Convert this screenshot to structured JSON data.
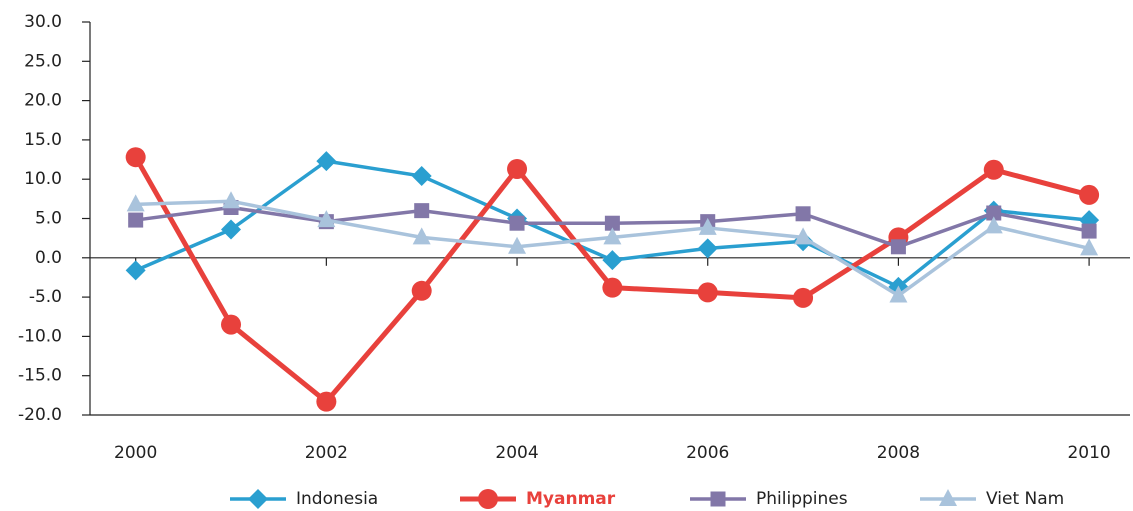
{
  "chart_data": {
    "type": "line",
    "x": [
      2000,
      2001,
      2002,
      2003,
      2004,
      2005,
      2006,
      2007,
      2008,
      2009,
      2010
    ],
    "xlim": [
      1999.5,
      2010.45
    ],
    "xticks": [
      2000,
      2002,
      2004,
      2006,
      2008,
      2010
    ],
    "ylim": [
      -20,
      30
    ],
    "yticks": [
      {
        "value": -20,
        "label": "-20.0"
      },
      {
        "value": -15,
        "label": "-15.0"
      },
      {
        "value": -10,
        "label": "-10.0"
      },
      {
        "value": -5,
        "label": "-5.0"
      },
      {
        "value": 0,
        "label": "0.0"
      },
      {
        "value": 5,
        "label": "5.0"
      },
      {
        "value": 10,
        "label": "10.0"
      },
      {
        "value": 15,
        "label": "15.0"
      },
      {
        "value": 20,
        "label": "20.0"
      },
      {
        "value": 25,
        "label": "25.0"
      },
      {
        "value": 30,
        "label": "30.0"
      }
    ],
    "legend": "bottom",
    "series": [
      {
        "name": "Indonesia",
        "color": "#2a9fd0",
        "marker": "diamond",
        "values": [
          -1.6,
          3.6,
          12.3,
          10.4,
          5.0,
          -0.3,
          1.2,
          2.1,
          -3.7,
          6.0,
          4.8
        ]
      },
      {
        "name": "Myanmar",
        "color": "#e8413c",
        "marker": "circle",
        "emphasis": true,
        "values": [
          12.8,
          -8.5,
          -18.3,
          -4.2,
          11.3,
          -3.8,
          -4.4,
          -5.1,
          2.6,
          11.2,
          8.0
        ]
      },
      {
        "name": "Philippines",
        "color": "#8277a8",
        "marker": "square",
        "values": [
          4.8,
          6.4,
          4.6,
          6.0,
          4.4,
          4.4,
          4.6,
          5.6,
          1.4,
          5.7,
          3.4
        ]
      },
      {
        "name": "Viet Nam",
        "color": "#a9c3dc",
        "marker": "triangle",
        "values": [
          6.8,
          7.2,
          4.8,
          2.6,
          1.4,
          2.6,
          3.8,
          2.6,
          -4.8,
          4.0,
          1.2
        ]
      }
    ]
  }
}
